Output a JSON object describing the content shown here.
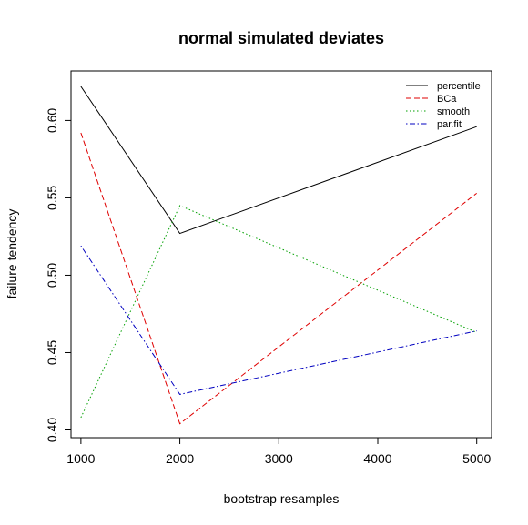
{
  "chart_data": {
    "type": "line",
    "title": "normal simulated deviates",
    "xlabel": "bootstrap resamples",
    "ylabel": "failure tendency",
    "x": [
      1000,
      2000,
      5000
    ],
    "xlim": [
      900,
      5150
    ],
    "ylim": [
      0.395,
      0.632
    ],
    "xticks": [
      1000,
      2000,
      3000,
      4000,
      5000
    ],
    "yticks": [
      0.4,
      0.45,
      0.5,
      0.55,
      0.6
    ],
    "xtick_labels": [
      "1000",
      "2000",
      "3000",
      "4000",
      "5000"
    ],
    "ytick_labels": [
      "0.40",
      "0.45",
      "0.50",
      "0.55",
      "0.60"
    ],
    "legend_position": "top-right",
    "series": [
      {
        "name": "percentile",
        "values": [
          0.622,
          0.527,
          0.596
        ],
        "color": "#000000",
        "dash": "solid"
      },
      {
        "name": "BCa",
        "values": [
          0.592,
          0.404,
          0.553
        ],
        "color": "#DF0000",
        "dash": "dashed"
      },
      {
        "name": "smooth",
        "values": [
          0.408,
          0.545,
          0.463
        ],
        "color": "#00A000",
        "dash": "dotted"
      },
      {
        "name": "par.fit",
        "values": [
          0.519,
          0.423,
          0.464
        ],
        "color": "#0000C0",
        "dash": "dotdash"
      }
    ]
  }
}
